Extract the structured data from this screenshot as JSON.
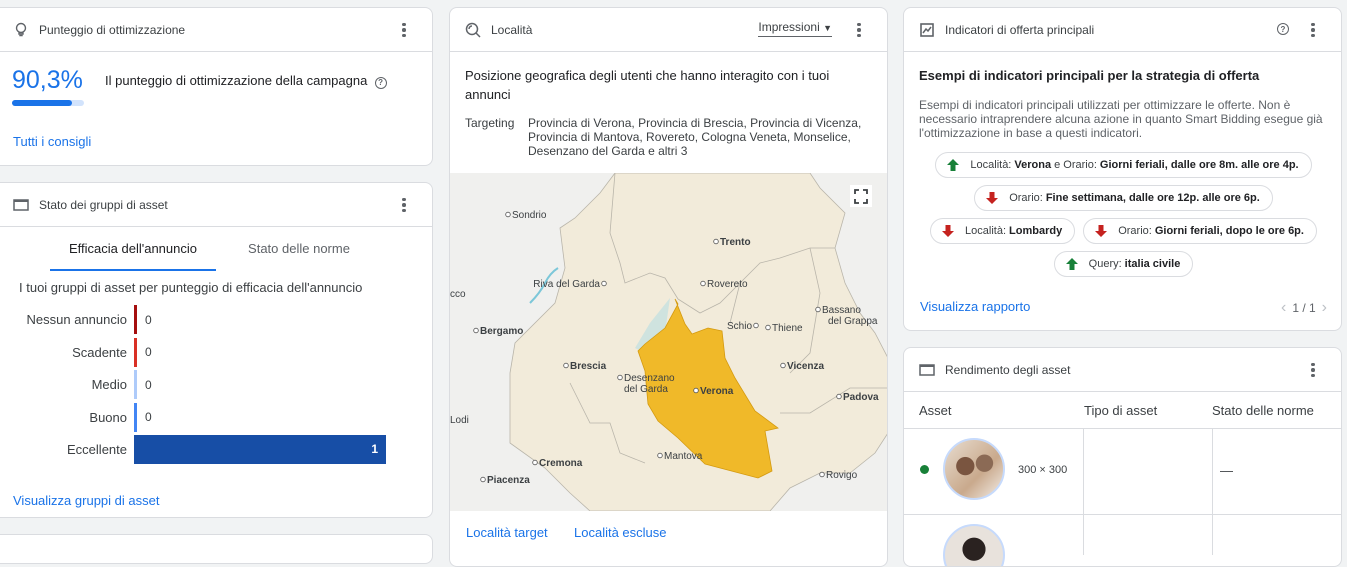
{
  "optimization": {
    "title": "Punteggio di ottimizzazione",
    "score": "90,3%",
    "score_fraction": 0.903,
    "description": "Il punteggio di ottimizzazione della campagna",
    "link": "Tutti i consigli",
    "icon": "lightbulb-icon"
  },
  "asset_groups": {
    "title": "Stato dei gruppi di asset",
    "tabs": [
      {
        "label": "Efficacia dell'annuncio",
        "active": true
      },
      {
        "label": "Stato delle norme",
        "active": false
      }
    ],
    "subtitle": "I tuoi gruppi di asset per punteggio di efficacia dell'annuncio",
    "link": "Visualizza gruppi di asset"
  },
  "chart_data": {
    "type": "bar",
    "orientation": "horizontal",
    "categories": [
      "Nessun annuncio",
      "Scadente",
      "Medio",
      "Buono",
      "Eccellente"
    ],
    "values": [
      0,
      0,
      0,
      0,
      1
    ],
    "colors": [
      "#a50e0e",
      "#d93025",
      "#aecbfa",
      "#4285f4",
      "#174ea6"
    ]
  },
  "location": {
    "title": "Località",
    "dropdown": "Impressioni",
    "heading": "Posizione geografica degli utenti che hanno interagito con i tuoi annunci",
    "targeting_label": "Targeting",
    "targeting_value": "Provincia di Verona, Provincia di Brescia, Provincia di Vicenza, Provincia di Mantova, Rovereto, Cologna Veneta, Monselice, Desenzano del Garda e altri 3",
    "map_labels": {
      "sondrio": "Sondrio",
      "trento": "Trento",
      "riva": "Riva del Garda",
      "rovereto": "Rovereto",
      "lecco": "cco",
      "bassano1": "Bassano",
      "bassano2": "del Grappa",
      "bergamo": "Bergamo",
      "schio": "Schio",
      "thiene": "Thiene",
      "brescia": "Brescia",
      "desenzano1": "Desenzano",
      "desenzano2": "del Garda",
      "verona": "Verona",
      "vicenza": "Vicenza",
      "padova": "Padova",
      "lodi": "Lodi",
      "mantova": "Mantova",
      "cremona": "Cremona",
      "rovigo": "Rovigo",
      "piacenza": "Piacenza"
    },
    "highlight_color": "#f0b929",
    "links": [
      "Località target",
      "Località escluse"
    ]
  },
  "signals": {
    "title": "Indicatori di offerta principali",
    "heading": "Esempi di indicatori principali per la strategia di offerta",
    "description": "Esempi di indicatori principali utilizzati per ottimizzare le offerte. Non è necessario intraprendere alcuna azione in quanto Smart Bidding esegue già l'ottimizzazione in base a questi indicatori.",
    "chips": [
      {
        "direction": "up",
        "parts": [
          [
            "Località:",
            "Verona"
          ],
          [
            "e Orario:",
            "Giorni feriali, dalle ore 8m. alle ore 4p."
          ]
        ]
      },
      {
        "direction": "down",
        "parts": [
          [
            "Orario:",
            "Fine settimana, dalle ore 12p. alle ore 6p."
          ]
        ]
      },
      {
        "direction": "down",
        "parts": [
          [
            "Località:",
            "Lombardy"
          ]
        ]
      },
      {
        "direction": "down",
        "parts": [
          [
            "Orario:",
            "Giorni feriali, dopo le ore 6p."
          ]
        ]
      },
      {
        "direction": "up",
        "parts": [
          [
            "Query:",
            "italia civile"
          ]
        ]
      }
    ],
    "link": "Visualizza rapporto",
    "pagination": "1 / 1",
    "up_color": "#188038",
    "down_color": "#c5221f"
  },
  "asset_performance": {
    "title": "Rendimento degli asset",
    "columns": [
      "Asset",
      "Tipo di asset",
      "Stato delle norme"
    ],
    "rows": [
      {
        "status_color": "#188038",
        "size": "300 × 300",
        "type": "",
        "policy": "—"
      }
    ]
  }
}
